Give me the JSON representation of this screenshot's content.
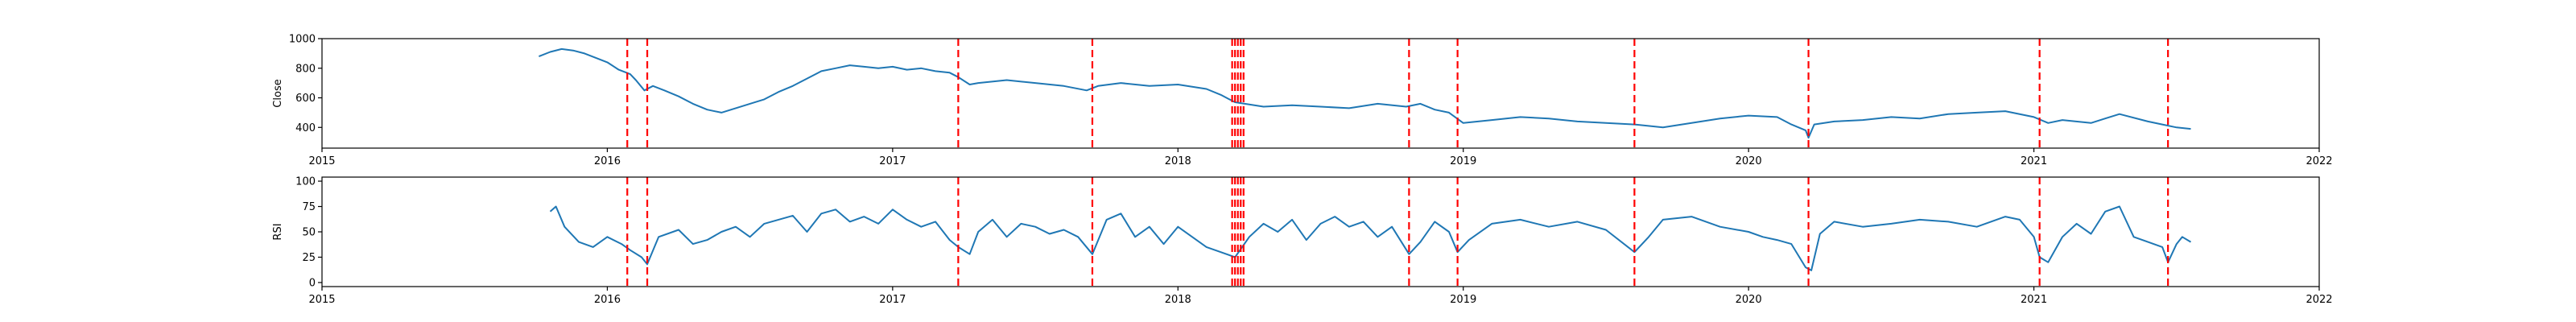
{
  "chart_data": [
    {
      "type": "line",
      "title": "",
      "xlabel": "",
      "ylabel": "Close",
      "xlim": [
        2015.0,
        2022.0
      ],
      "ylim": [
        260,
        1000
      ],
      "x_ticks": [
        "2015",
        "2016",
        "2017",
        "2018",
        "2019",
        "2020",
        "2021",
        "2022"
      ],
      "y_ticks": [
        400,
        600,
        800,
        1000
      ],
      "series_color": "#1f77b4",
      "series": [
        {
          "x": [
            2015.76,
            2015.8,
            2015.84,
            2015.88,
            2015.92,
            2015.96,
            2016.0,
            2016.04,
            2016.08,
            2016.1,
            2016.13,
            2016.16,
            2016.2,
            2016.25,
            2016.3,
            2016.35,
            2016.4,
            2016.45,
            2016.5,
            2016.55,
            2016.6,
            2016.65,
            2016.7,
            2016.75,
            2016.8,
            2016.85,
            2016.9,
            2016.95,
            2017.0,
            2017.05,
            2017.1,
            2017.15,
            2017.2,
            2017.23,
            2017.27,
            2017.3,
            2017.4,
            2017.5,
            2017.6,
            2017.68,
            2017.72,
            2017.8,
            2017.9,
            2018.0,
            2018.1,
            2018.15,
            2018.2,
            2018.3,
            2018.4,
            2018.5,
            2018.6,
            2018.7,
            2018.8,
            2018.85,
            2018.9,
            2018.95,
            2019.0,
            2019.1,
            2019.2,
            2019.3,
            2019.4,
            2019.5,
            2019.6,
            2019.7,
            2019.8,
            2019.9,
            2020.0,
            2020.1,
            2020.15,
            2020.2,
            2020.21,
            2020.23,
            2020.3,
            2020.4,
            2020.5,
            2020.6,
            2020.7,
            2020.8,
            2020.9,
            2021.0,
            2021.05,
            2021.1,
            2021.2,
            2021.25,
            2021.3,
            2021.4,
            2021.45,
            2021.5,
            2021.55
          ],
          "y": [
            880,
            910,
            930,
            920,
            900,
            870,
            840,
            790,
            760,
            720,
            650,
            680,
            650,
            610,
            560,
            520,
            500,
            530,
            560,
            590,
            640,
            680,
            730,
            780,
            800,
            820,
            810,
            800,
            810,
            790,
            800,
            780,
            770,
            740,
            690,
            700,
            720,
            700,
            680,
            650,
            680,
            700,
            680,
            690,
            660,
            620,
            570,
            540,
            550,
            540,
            530,
            560,
            540,
            560,
            520,
            500,
            430,
            450,
            470,
            460,
            440,
            430,
            420,
            400,
            430,
            460,
            480,
            470,
            420,
            380,
            330,
            420,
            440,
            450,
            470,
            460,
            490,
            500,
            510,
            470,
            430,
            450,
            430,
            460,
            490,
            440,
            420,
            400,
            390
          ]
        }
      ],
      "event_lines": [
        2016.07,
        2016.14,
        2017.23,
        2017.7,
        2018.19,
        2018.2,
        2018.21,
        2018.22,
        2018.23,
        2018.81,
        2018.98,
        2019.6,
        2020.21,
        2021.02,
        2021.47
      ],
      "event_color": "#ff0000"
    },
    {
      "type": "line",
      "title": "",
      "xlabel": "",
      "ylabel": "RSI",
      "xlim": [
        2015.0,
        2022.0
      ],
      "ylim": [
        -4,
        104
      ],
      "x_ticks": [
        "2015",
        "2016",
        "2017",
        "2018",
        "2019",
        "2020",
        "2021",
        "2022"
      ],
      "y_ticks": [
        0,
        25,
        50,
        75,
        100
      ],
      "series_color": "#1f77b4",
      "series": [
        {
          "x": [
            2015.8,
            2015.82,
            2015.85,
            2015.9,
            2015.95,
            2016.0,
            2016.05,
            2016.08,
            2016.12,
            2016.14,
            2016.18,
            2016.25,
            2016.3,
            2016.35,
            2016.4,
            2016.45,
            2016.5,
            2016.55,
            2016.6,
            2016.65,
            2016.7,
            2016.75,
            2016.8,
            2016.85,
            2016.9,
            2016.95,
            2017.0,
            2017.05,
            2017.1,
            2017.15,
            2017.2,
            2017.23,
            2017.27,
            2017.3,
            2017.35,
            2017.4,
            2017.45,
            2017.5,
            2017.55,
            2017.6,
            2017.65,
            2017.7,
            2017.75,
            2017.8,
            2017.85,
            2017.9,
            2017.95,
            2018.0,
            2018.05,
            2018.1,
            2018.15,
            2018.2,
            2018.25,
            2018.3,
            2018.35,
            2018.4,
            2018.45,
            2018.5,
            2018.55,
            2018.6,
            2018.65,
            2018.7,
            2018.75,
            2018.81,
            2018.85,
            2018.9,
            2018.95,
            2018.98,
            2019.02,
            2019.1,
            2019.2,
            2019.3,
            2019.4,
            2019.5,
            2019.6,
            2019.65,
            2019.7,
            2019.8,
            2019.9,
            2020.0,
            2020.05,
            2020.1,
            2020.15,
            2020.2,
            2020.22,
            2020.25,
            2020.3,
            2020.4,
            2020.5,
            2020.6,
            2020.7,
            2020.8,
            2020.9,
            2020.95,
            2021.0,
            2021.02,
            2021.05,
            2021.1,
            2021.15,
            2021.2,
            2021.25,
            2021.3,
            2021.35,
            2021.4,
            2021.45,
            2021.47,
            2021.5,
            2021.52,
            2021.55
          ],
          "y": [
            70,
            75,
            55,
            40,
            35,
            45,
            38,
            32,
            25,
            18,
            45,
            52,
            38,
            42,
            50,
            55,
            45,
            58,
            62,
            66,
            50,
            68,
            72,
            60,
            65,
            58,
            72,
            62,
            55,
            60,
            42,
            35,
            28,
            50,
            62,
            45,
            58,
            55,
            48,
            52,
            45,
            28,
            62,
            68,
            45,
            55,
            38,
            55,
            45,
            35,
            30,
            25,
            45,
            58,
            50,
            62,
            42,
            58,
            65,
            55,
            60,
            45,
            55,
            28,
            40,
            60,
            50,
            30,
            42,
            58,
            62,
            55,
            60,
            52,
            30,
            45,
            62,
            65,
            55,
            50,
            45,
            42,
            38,
            15,
            12,
            48,
            60,
            55,
            58,
            62,
            60,
            55,
            65,
            62,
            45,
            25,
            20,
            45,
            58,
            48,
            70,
            75,
            45,
            40,
            35,
            20,
            38,
            45,
            40
          ]
        }
      ],
      "event_lines": [
        2016.07,
        2016.14,
        2017.23,
        2017.7,
        2018.19,
        2018.2,
        2018.21,
        2018.22,
        2018.23,
        2018.81,
        2018.98,
        2019.6,
        2020.21,
        2021.02,
        2021.47
      ],
      "event_color": "#ff0000"
    }
  ]
}
